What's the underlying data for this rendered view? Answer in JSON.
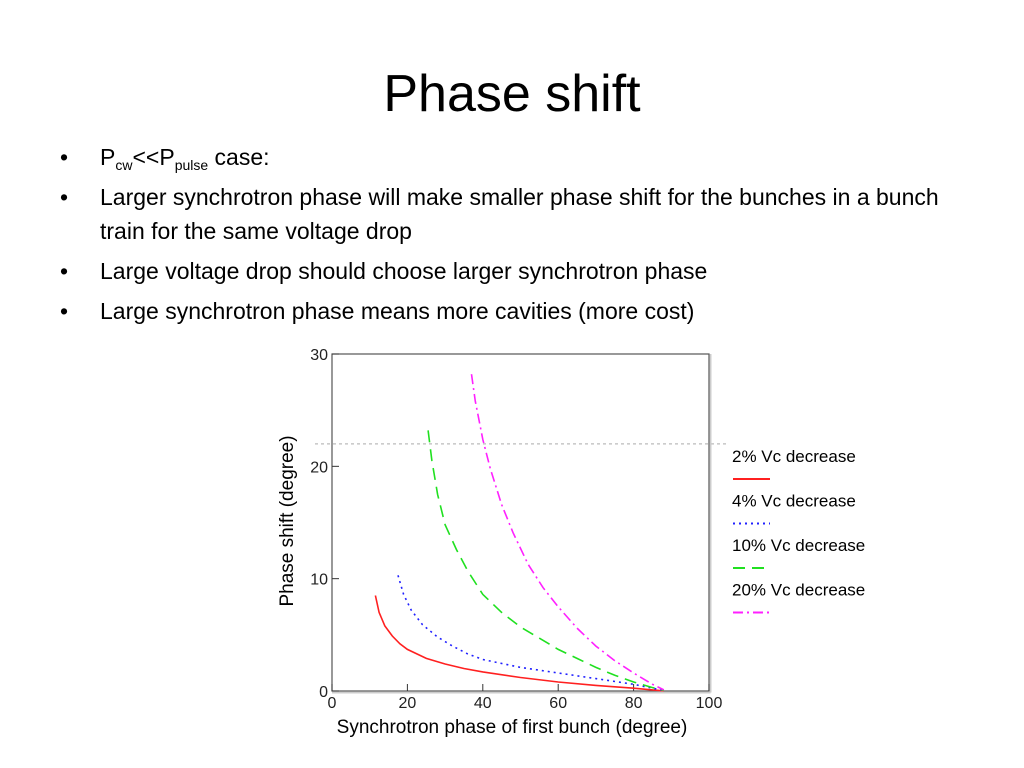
{
  "slide": {
    "title": "Phase shift",
    "bullet_glyph": "•",
    "bullets": {
      "b1": {
        "p1": "P",
        "s1": "cw",
        "p2": "<<P",
        "s2": "pulse",
        "p3": " case:"
      },
      "b2": "Larger synchrotron phase will make smaller phase shift for the bunches in a bunch train for the same voltage drop",
      "b3": "Large voltage drop should choose larger synchrotron phase",
      "b4": "Large synchrotron phase means more cavities (more cost)"
    }
  },
  "chart_data": {
    "type": "line",
    "title": "",
    "xlabel": "Synchrotron phase of first bunch (degree)",
    "ylabel": "Phase shift  (degree)",
    "xlim": [
      0,
      100
    ],
    "ylim": [
      0,
      30
    ],
    "xticks": [
      0,
      20,
      40,
      60,
      80,
      100
    ],
    "yticks": [
      0,
      10,
      20,
      30
    ],
    "grid": false,
    "legend_position": "right",
    "reference_line": {
      "y": 22,
      "style": "dotted",
      "color": "#bbbbbb"
    },
    "series": [
      {
        "name": "2% Vc decrease",
        "color": "#ff2020",
        "dash": "solid",
        "x": [
          11.5,
          12.5,
          14,
          16,
          18,
          20,
          25,
          30,
          35,
          40,
          50,
          60,
          70,
          80,
          85,
          88
        ],
        "y": [
          8.5,
          7.0,
          5.8,
          4.9,
          4.2,
          3.7,
          2.9,
          2.4,
          2.0,
          1.7,
          1.2,
          0.8,
          0.5,
          0.25,
          0.1,
          0.02
        ]
      },
      {
        "name": "4% Vc decrease",
        "color": "#2020ff",
        "dash": "dotted",
        "x": [
          17.5,
          19,
          21,
          24,
          28,
          32,
          36,
          40,
          50,
          60,
          70,
          80,
          85,
          88
        ],
        "y": [
          10.3,
          8.6,
          7.2,
          5.9,
          4.8,
          4.0,
          3.3,
          2.8,
          2.1,
          1.6,
          1.1,
          0.6,
          0.25,
          0.05
        ]
      },
      {
        "name": "10% Vc decrease",
        "color": "#20e020",
        "dash": "dashed",
        "x": [
          25.5,
          26.5,
          28,
          30,
          33,
          36,
          40,
          45,
          50,
          55,
          60,
          65,
          70,
          75,
          80,
          85,
          88
        ],
        "y": [
          23.2,
          20.5,
          17.5,
          14.8,
          12.6,
          10.7,
          8.6,
          7.0,
          5.7,
          4.7,
          3.7,
          2.9,
          2.1,
          1.4,
          0.8,
          0.3,
          0.05
        ]
      },
      {
        "name": "20% Vc decrease",
        "color": "#ff20ff",
        "dash": "dashdot",
        "x": [
          37,
          38,
          40,
          42,
          45,
          48,
          52,
          56,
          60,
          65,
          70,
          75,
          80,
          85,
          88
        ],
        "y": [
          28.2,
          25.8,
          22.4,
          19.8,
          16.6,
          14.1,
          11.3,
          9.2,
          7.5,
          5.6,
          4.0,
          2.7,
          1.6,
          0.6,
          0.1
        ]
      }
    ]
  }
}
